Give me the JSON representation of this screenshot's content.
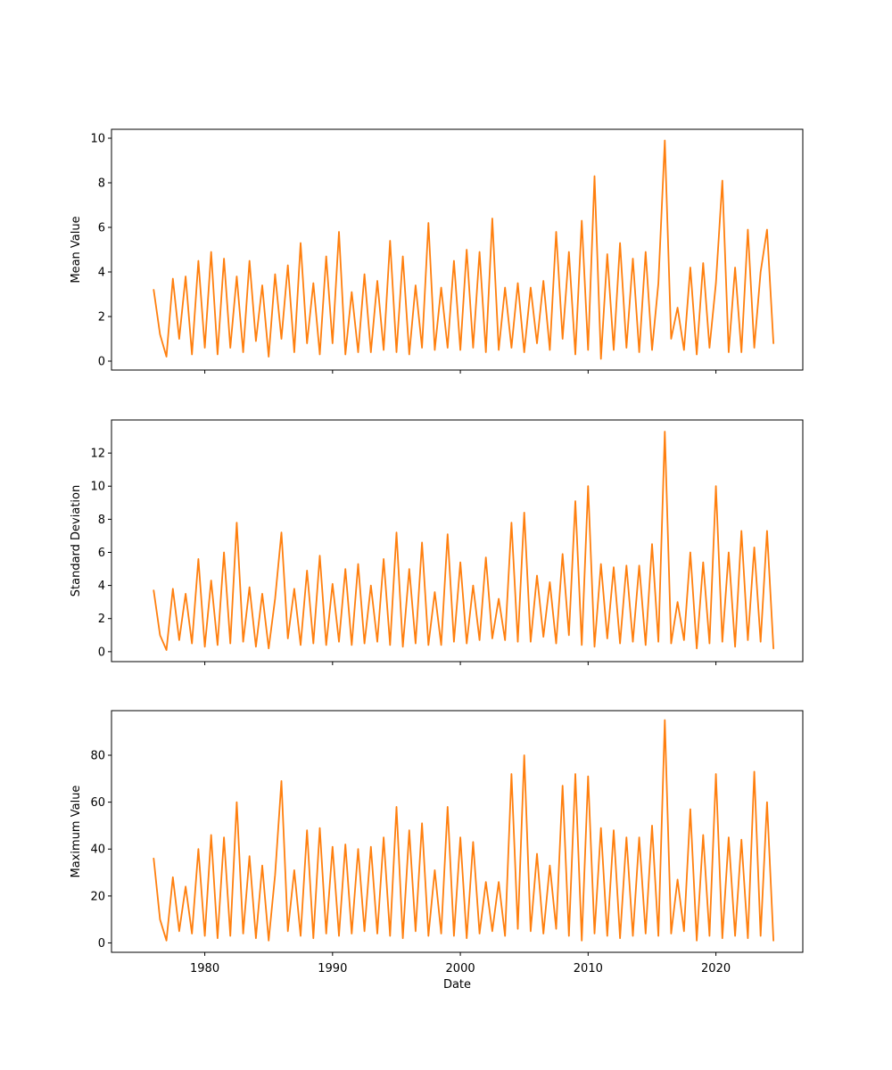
{
  "chart_data": [
    {
      "type": "line",
      "xlabel": "",
      "ylabel": "Mean Value",
      "xlim": [
        1972.7,
        2026.8
      ],
      "ylim": [
        -0.4,
        10.4
      ],
      "yticks": [
        0,
        2,
        4,
        6,
        8,
        10
      ],
      "xticks": [
        1980,
        1990,
        2000,
        2010,
        2020
      ],
      "show_xtick_labels": false,
      "color": "#ff7f0e",
      "series": [
        {
          "x": [
            1976.0,
            1976.5,
            1977.0,
            1977.5,
            1978.0,
            1978.5,
            1979.0,
            1979.5,
            1980.0,
            1980.5,
            1981.0,
            1981.5,
            1982.0,
            1982.5,
            1983.0,
            1983.5,
            1984.0,
            1984.5,
            1985.0,
            1985.5,
            1986.0,
            1986.5,
            1987.0,
            1987.5,
            1988.0,
            1988.5,
            1989.0,
            1989.5,
            1990.0,
            1990.5,
            1991.0,
            1991.5,
            1992.0,
            1992.5,
            1993.0,
            1993.5,
            1994.0,
            1994.5,
            1995.0,
            1995.5,
            1996.0,
            1996.5,
            1997.0,
            1997.5,
            1998.0,
            1998.5,
            1999.0,
            1999.5,
            2000.0,
            2000.5,
            2001.0,
            2001.5,
            2002.0,
            2002.5,
            2003.0,
            2003.5,
            2004.0,
            2004.5,
            2005.0,
            2005.5,
            2006.0,
            2006.5,
            2007.0,
            2007.5,
            2008.0,
            2008.5,
            2009.0,
            2009.5,
            2010.0,
            2010.5,
            2011.0,
            2011.5,
            2012.0,
            2012.5,
            2013.0,
            2013.5,
            2014.0,
            2014.5,
            2015.0,
            2015.5,
            2016.0,
            2016.5,
            2017.0,
            2017.5,
            2018.0,
            2018.5,
            2019.0,
            2019.5,
            2020.0,
            2020.5,
            2021.0,
            2021.5,
            2022.0,
            2022.5,
            2023.0,
            2023.5,
            2024.0,
            2024.5
          ],
          "y": [
            3.2,
            1.2,
            0.2,
            3.7,
            1.0,
            3.8,
            0.3,
            4.5,
            0.6,
            4.9,
            0.3,
            4.6,
            0.6,
            3.8,
            0.4,
            4.5,
            0.9,
            3.4,
            0.2,
            3.9,
            1.0,
            4.3,
            0.4,
            5.3,
            0.8,
            3.5,
            0.3,
            4.7,
            0.8,
            5.8,
            0.3,
            3.1,
            0.4,
            3.9,
            0.4,
            3.6,
            0.5,
            5.4,
            0.4,
            4.7,
            0.3,
            3.4,
            0.6,
            6.2,
            0.5,
            3.3,
            0.6,
            4.5,
            0.5,
            5.0,
            0.6,
            4.9,
            0.4,
            6.4,
            0.5,
            3.3,
            0.6,
            3.5,
            0.4,
            3.3,
            0.8,
            3.6,
            0.5,
            5.8,
            1.0,
            4.9,
            0.3,
            6.3,
            0.5,
            8.3,
            0.1,
            4.8,
            0.5,
            5.3,
            0.6,
            4.6,
            0.4,
            4.9,
            0.5,
            3.5,
            9.9,
            1.0,
            2.4,
            0.5,
            4.2,
            0.3,
            4.4,
            0.6,
            3.5,
            8.1,
            0.4,
            4.2,
            0.4,
            5.9,
            0.6,
            4.0,
            5.9,
            0.8
          ]
        }
      ]
    },
    {
      "type": "line",
      "xlabel": "",
      "ylabel": "Standard Deviation",
      "xlim": [
        1972.7,
        2026.8
      ],
      "ylim": [
        -0.6,
        14.0
      ],
      "yticks": [
        0,
        2,
        4,
        6,
        8,
        10,
        12
      ],
      "xticks": [
        1980,
        1990,
        2000,
        2010,
        2020
      ],
      "show_xtick_labels": false,
      "color": "#ff7f0e",
      "series": [
        {
          "x": [
            1976.0,
            1976.5,
            1977.0,
            1977.5,
            1978.0,
            1978.5,
            1979.0,
            1979.5,
            1980.0,
            1980.5,
            1981.0,
            1981.5,
            1982.0,
            1982.5,
            1983.0,
            1983.5,
            1984.0,
            1984.5,
            1985.0,
            1985.5,
            1986.0,
            1986.5,
            1987.0,
            1987.5,
            1988.0,
            1988.5,
            1989.0,
            1989.5,
            1990.0,
            1990.5,
            1991.0,
            1991.5,
            1992.0,
            1992.5,
            1993.0,
            1993.5,
            1994.0,
            1994.5,
            1995.0,
            1995.5,
            1996.0,
            1996.5,
            1997.0,
            1997.5,
            1998.0,
            1998.5,
            1999.0,
            1999.5,
            2000.0,
            2000.5,
            2001.0,
            2001.5,
            2002.0,
            2002.5,
            2003.0,
            2003.5,
            2004.0,
            2004.5,
            2005.0,
            2005.5,
            2006.0,
            2006.5,
            2007.0,
            2007.5,
            2008.0,
            2008.5,
            2009.0,
            2009.5,
            2010.0,
            2010.5,
            2011.0,
            2011.5,
            2012.0,
            2012.5,
            2013.0,
            2013.5,
            2014.0,
            2014.5,
            2015.0,
            2015.5,
            2016.0,
            2016.5,
            2017.0,
            2017.5,
            2018.0,
            2018.5,
            2019.0,
            2019.5,
            2020.0,
            2020.5,
            2021.0,
            2021.5,
            2022.0,
            2022.5,
            2023.0,
            2023.5,
            2024.0,
            2024.5
          ],
          "y": [
            3.7,
            1.0,
            0.1,
            3.8,
            0.7,
            3.5,
            0.5,
            5.6,
            0.3,
            4.3,
            0.4,
            6.0,
            0.5,
            7.8,
            0.6,
            3.9,
            0.3,
            3.5,
            0.2,
            3.2,
            7.2,
            0.8,
            3.8,
            0.4,
            4.9,
            0.5,
            5.8,
            0.4,
            4.1,
            0.6,
            5.0,
            0.4,
            5.3,
            0.5,
            4.0,
            0.6,
            5.6,
            0.4,
            7.2,
            0.3,
            5.0,
            0.5,
            6.6,
            0.4,
            3.6,
            0.4,
            7.1,
            0.6,
            5.4,
            0.5,
            4.0,
            0.7,
            5.7,
            0.8,
            3.2,
            0.7,
            7.8,
            0.6,
            8.4,
            0.6,
            4.6,
            0.9,
            4.2,
            0.5,
            5.9,
            1.0,
            9.1,
            0.4,
            10.0,
            0.3,
            5.3,
            0.8,
            5.1,
            0.5,
            5.2,
            0.6,
            5.2,
            0.4,
            6.5,
            0.6,
            13.3,
            0.5,
            3.0,
            0.7,
            6.0,
            0.2,
            5.4,
            0.5,
            10.0,
            0.6,
            6.0,
            0.3,
            7.3,
            0.7,
            6.3,
            0.6,
            7.3,
            0.2
          ]
        }
      ]
    },
    {
      "type": "line",
      "xlabel": "Date",
      "ylabel": "Maximum Value",
      "xlim": [
        1972.7,
        2026.8
      ],
      "ylim": [
        -4,
        99
      ],
      "yticks": [
        0,
        20,
        40,
        60,
        80
      ],
      "xticks": [
        1980,
        1990,
        2000,
        2010,
        2020
      ],
      "show_xtick_labels": true,
      "color": "#ff7f0e",
      "series": [
        {
          "x": [
            1976.0,
            1976.5,
            1977.0,
            1977.5,
            1978.0,
            1978.5,
            1979.0,
            1979.5,
            1980.0,
            1980.5,
            1981.0,
            1981.5,
            1982.0,
            1982.5,
            1983.0,
            1983.5,
            1984.0,
            1984.5,
            1985.0,
            1985.5,
            1986.0,
            1986.5,
            1987.0,
            1987.5,
            1988.0,
            1988.5,
            1989.0,
            1989.5,
            1990.0,
            1990.5,
            1991.0,
            1991.5,
            1992.0,
            1992.5,
            1993.0,
            1993.5,
            1994.0,
            1994.5,
            1995.0,
            1995.5,
            1996.0,
            1996.5,
            1997.0,
            1997.5,
            1998.0,
            1998.5,
            1999.0,
            1999.5,
            2000.0,
            2000.5,
            2001.0,
            2001.5,
            2002.0,
            2002.5,
            2003.0,
            2003.5,
            2004.0,
            2004.5,
            2005.0,
            2005.5,
            2006.0,
            2006.5,
            2007.0,
            2007.5,
            2008.0,
            2008.5,
            2009.0,
            2009.5,
            2010.0,
            2010.5,
            2011.0,
            2011.5,
            2012.0,
            2012.5,
            2013.0,
            2013.5,
            2014.0,
            2014.5,
            2015.0,
            2015.5,
            2016.0,
            2016.5,
            2017.0,
            2017.5,
            2018.0,
            2018.5,
            2019.0,
            2019.5,
            2020.0,
            2020.5,
            2021.0,
            2021.5,
            2022.0,
            2022.5,
            2023.0,
            2023.5,
            2024.0,
            2024.5
          ],
          "y": [
            36,
            10,
            1,
            28,
            5,
            24,
            4,
            40,
            3,
            46,
            2,
            45,
            3,
            60,
            4,
            37,
            2,
            33,
            1,
            29,
            69,
            5,
            31,
            3,
            48,
            2,
            49,
            4,
            41,
            3,
            42,
            4,
            40,
            5,
            41,
            4,
            45,
            3,
            58,
            2,
            48,
            5,
            51,
            3,
            31,
            4,
            58,
            3,
            45,
            2,
            43,
            4,
            26,
            5,
            26,
            3,
            72,
            6,
            80,
            5,
            38,
            4,
            33,
            6,
            67,
            3,
            72,
            1,
            71,
            4,
            49,
            3,
            48,
            2,
            45,
            3,
            45,
            4,
            50,
            3,
            95,
            4,
            27,
            5,
            57,
            1,
            46,
            3,
            72,
            2,
            45,
            3,
            44,
            2,
            73,
            3,
            60,
            1
          ]
        }
      ]
    }
  ]
}
